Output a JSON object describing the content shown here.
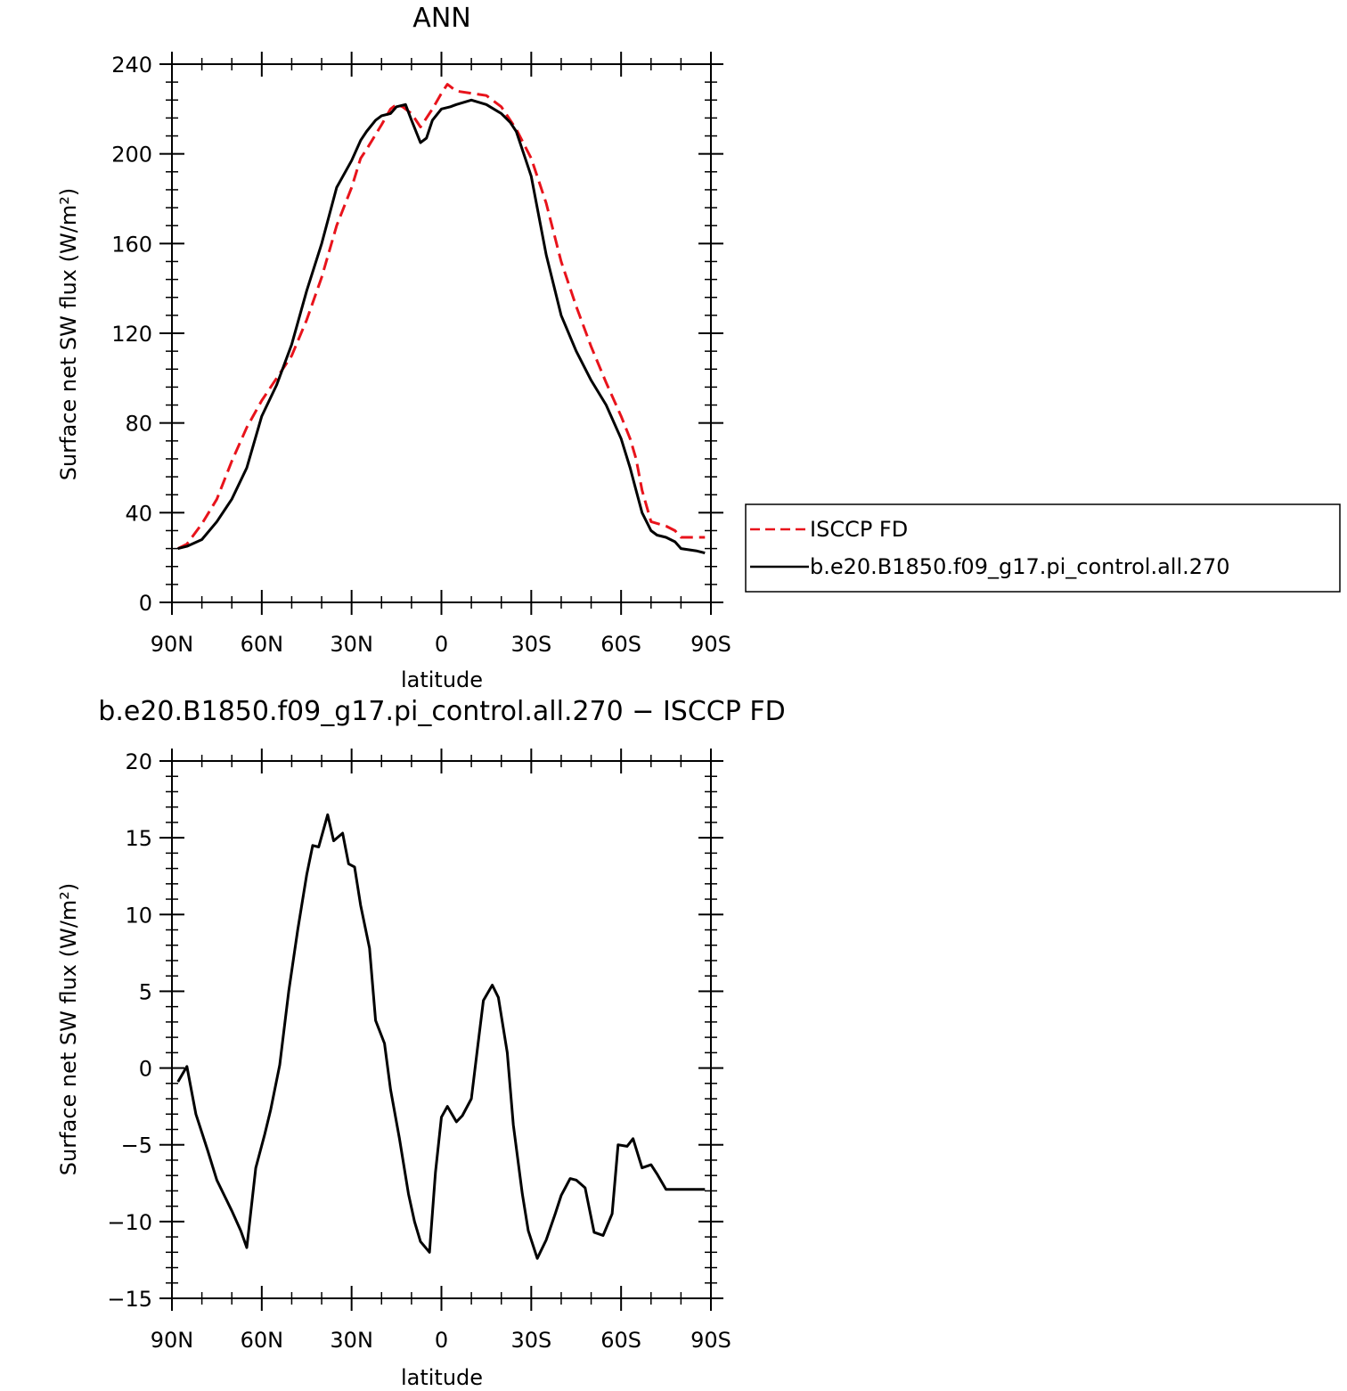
{
  "colors": {
    "isccp": "#e8131b",
    "model": "#000000",
    "axes": "#000000",
    "background": "#ffffff"
  },
  "chart_data": [
    {
      "type": "line",
      "title": "ANN",
      "xlabel": "latitude",
      "ylabel": "Surface net SW flux (W/m²)",
      "xlim": [
        -90,
        90
      ],
      "ylim": [
        0,
        240
      ],
      "x_ticks": [
        -90,
        -60,
        -30,
        0,
        30,
        60,
        90
      ],
      "x_tick_labels": [
        "90N",
        "60N",
        "30N",
        "0",
        "30S",
        "60S",
        "90S"
      ],
      "y_ticks": [
        0,
        40,
        80,
        120,
        160,
        200,
        240
      ],
      "y_tick_labels": [
        "0",
        "40",
        "80",
        "120",
        "160",
        "200",
        "240"
      ],
      "grid": false,
      "legend_position": "right",
      "series": [
        {
          "name": "ISCCP FD",
          "style": "dashed",
          "color": "#e8131b",
          "x": [
            -88,
            -85,
            -80,
            -75,
            -70,
            -65,
            -60,
            -55,
            -50,
            -45,
            -40,
            -35,
            -30,
            -27,
            -25,
            -20,
            -17,
            -15,
            -13,
            -10,
            -7,
            -3,
            0,
            2,
            5,
            10,
            15,
            20,
            25,
            30,
            35,
            40,
            45,
            50,
            55,
            60,
            63,
            65,
            67,
            70,
            75,
            78,
            80,
            85,
            88
          ],
          "y": [
            24,
            26,
            35,
            46,
            63,
            78,
            90,
            100,
            110,
            126,
            145,
            168,
            185,
            198,
            202,
            213,
            220,
            222,
            221,
            218,
            212,
            220,
            227,
            231,
            228,
            227,
            226,
            221,
            211,
            198,
            178,
            152,
            132,
            114,
            98,
            83,
            73,
            64,
            50,
            36,
            34,
            32,
            29,
            29,
            29
          ]
        },
        {
          "name": "b.e20.B1850.f09_g17.pi_control.all.270",
          "style": "solid",
          "color": "#000000",
          "x": [
            -88,
            -85,
            -80,
            -75,
            -70,
            -65,
            -60,
            -55,
            -50,
            -45,
            -40,
            -35,
            -30,
            -27,
            -25,
            -22,
            -20,
            -17,
            -15,
            -12,
            -10,
            -7,
            -5,
            -3,
            0,
            3,
            5,
            10,
            15,
            20,
            23,
            25,
            28,
            30,
            35,
            40,
            45,
            50,
            55,
            60,
            63,
            65,
            67,
            70,
            72,
            75,
            78,
            80,
            85,
            88
          ],
          "y": [
            24,
            25,
            28,
            36,
            46,
            60,
            83,
            97,
            115,
            139,
            160,
            185,
            197,
            206,
            210,
            215,
            217,
            218,
            221,
            222,
            215,
            205,
            207,
            215,
            220,
            221,
            222,
            224,
            222,
            218,
            214,
            210,
            198,
            190,
            155,
            128,
            112,
            99,
            88,
            73,
            60,
            50,
            40,
            32,
            30,
            29,
            27,
            24,
            23,
            22
          ]
        }
      ]
    },
    {
      "type": "line",
      "title": "b.e20.B1850.f09_g17.pi_control.all.270 − ISCCP FD",
      "xlabel": "latitude",
      "ylabel": "Surface net SW flux (W/m²)",
      "xlim": [
        -90,
        90
      ],
      "ylim": [
        -15,
        20
      ],
      "x_ticks": [
        -90,
        -60,
        -30,
        0,
        30,
        60,
        90
      ],
      "x_tick_labels": [
        "90N",
        "60N",
        "30N",
        "0",
        "30S",
        "60S",
        "90S"
      ],
      "y_ticks": [
        -15,
        -10,
        -5,
        0,
        5,
        10,
        15,
        20
      ],
      "y_tick_labels": [
        "−15",
        "−10",
        "−5",
        "0",
        "5",
        "10",
        "15",
        "20"
      ],
      "grid": false,
      "series": [
        {
          "style": "solid",
          "color": "#000000",
          "x": [
            -88,
            -85,
            -82,
            -78,
            -75,
            -70,
            -67,
            -65,
            -62,
            -59,
            -57,
            -54,
            -51,
            -48,
            -45,
            -43,
            -41,
            -38,
            -36,
            -33,
            -31,
            -29,
            -27,
            -24,
            -22,
            -19,
            -17,
            -14,
            -11,
            -9,
            -7,
            -4,
            -2,
            0,
            2,
            5,
            7,
            10,
            12,
            14,
            17,
            19,
            22,
            24,
            27,
            29,
            32,
            35,
            38,
            40,
            43,
            45,
            48,
            51,
            54,
            57,
            59,
            62,
            64,
            67,
            70,
            72,
            75,
            77,
            79,
            82,
            85,
            88
          ],
          "y": [
            -0.9,
            0.1,
            -3.0,
            -5.4,
            -7.3,
            -9.3,
            -10.6,
            -11.7,
            -6.5,
            -4.3,
            -2.7,
            0.2,
            5.0,
            9.0,
            12.6,
            14.5,
            14.4,
            16.5,
            14.8,
            15.3,
            13.3,
            13.1,
            10.6,
            7.8,
            3.1,
            1.6,
            -1.4,
            -4.6,
            -8.2,
            -10.0,
            -11.3,
            -12.0,
            -6.8,
            -3.2,
            -2.5,
            -3.5,
            -3.1,
            -2.0,
            1.2,
            4.4,
            5.4,
            4.6,
            1.0,
            -3.7,
            -8.2,
            -10.6,
            -12.4,
            -11.2,
            -9.5,
            -8.3,
            -7.2,
            -7.3,
            -7.8,
            -10.7,
            -10.9,
            -9.5,
            -5.0,
            -5.1,
            -4.6,
            -6.5,
            -6.3,
            -6.9,
            -7.9,
            -7.9,
            -7.9,
            -7.9,
            -7.9,
            -7.9
          ]
        }
      ]
    }
  ]
}
